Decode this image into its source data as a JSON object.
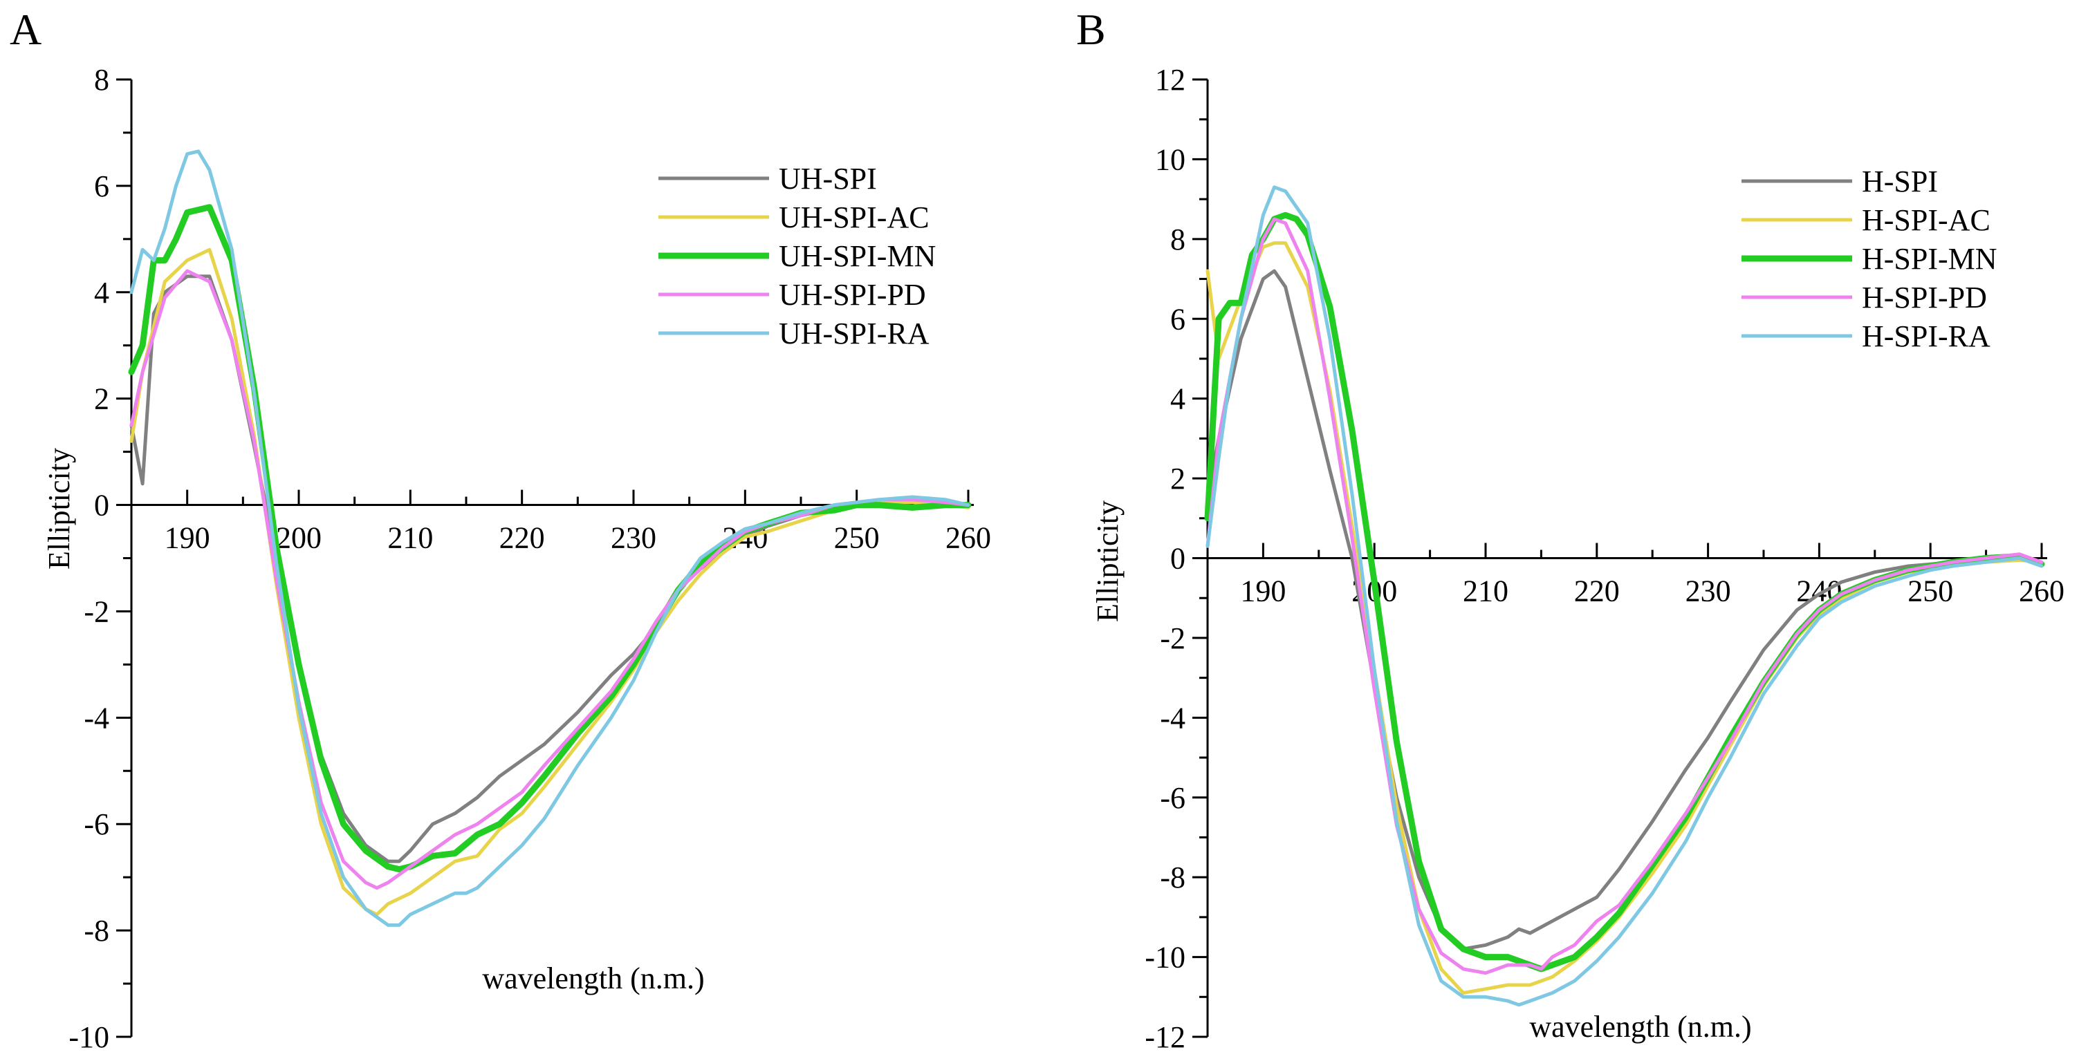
{
  "figure": {
    "panels": [
      "A",
      "B"
    ]
  },
  "chart_data": [
    {
      "panel": "A",
      "type": "line",
      "xlabel": "wavelength (n.m.)",
      "ylabel": "Ellipticity",
      "xlim": [
        185,
        260
      ],
      "ylim": [
        -10,
        8
      ],
      "xticks": [
        190,
        200,
        210,
        220,
        230,
        240,
        250,
        260
      ],
      "yticks": [
        8,
        6,
        4,
        2,
        0,
        -2,
        -4,
        -6,
        -8,
        -10
      ],
      "legend_position": "top-right",
      "grid": false,
      "series": [
        {
          "name": "UH-SPI",
          "color": "#808080",
          "x": [
            185,
            186,
            187,
            188,
            190,
            192,
            194,
            196,
            198,
            200,
            202,
            204,
            206,
            208,
            209,
            210,
            212,
            214,
            216,
            218,
            220,
            222,
            225,
            228,
            230,
            232,
            234,
            236,
            238,
            240,
            242,
            245,
            248,
            250,
            252,
            255,
            258,
            260
          ],
          "y": [
            1.5,
            0.4,
            3.6,
            4.0,
            4.3,
            4.3,
            3.1,
            1.1,
            -1.0,
            -3.0,
            -4.7,
            -5.8,
            -6.4,
            -6.7,
            -6.7,
            -6.5,
            -6.0,
            -5.8,
            -5.5,
            -5.1,
            -4.8,
            -4.5,
            -3.9,
            -3.2,
            -2.8,
            -2.3,
            -1.6,
            -1.2,
            -0.9,
            -0.6,
            -0.4,
            -0.2,
            -0.05,
            0.0,
            0.05,
            0.1,
            0.05,
            0.0
          ]
        },
        {
          "name": "UH-SPI-AC",
          "color": "#E8D44A",
          "x": [
            185,
            186,
            188,
            190,
            192,
            194,
            196,
            198,
            200,
            202,
            204,
            206,
            207,
            208,
            210,
            212,
            214,
            216,
            218,
            220,
            222,
            225,
            228,
            230,
            232,
            234,
            236,
            238,
            240,
            242,
            245,
            248,
            250,
            252,
            255,
            258,
            260
          ],
          "y": [
            1.2,
            2.5,
            4.2,
            4.6,
            4.8,
            3.5,
            1.3,
            -1.5,
            -4.0,
            -6.0,
            -7.2,
            -7.6,
            -7.7,
            -7.5,
            -7.3,
            -7.0,
            -6.7,
            -6.6,
            -6.1,
            -5.8,
            -5.3,
            -4.5,
            -3.7,
            -3.1,
            -2.4,
            -1.8,
            -1.3,
            -0.9,
            -0.6,
            -0.5,
            -0.3,
            -0.1,
            0.0,
            0.05,
            0.05,
            0.0,
            -0.05
          ]
        },
        {
          "name": "UH-SPI-MN",
          "color": "#22CC22",
          "width": 9,
          "x": [
            185,
            186,
            187,
            188,
            189,
            190,
            192,
            194,
            196,
            198,
            200,
            202,
            204,
            206,
            208,
            209,
            210,
            211,
            212,
            214,
            216,
            218,
            220,
            222,
            225,
            228,
            230,
            232,
            234,
            236,
            238,
            240,
            242,
            245,
            248,
            250,
            252,
            255,
            258,
            260
          ],
          "y": [
            2.5,
            3.0,
            4.6,
            4.6,
            5.0,
            5.5,
            5.6,
            4.6,
            2.2,
            -0.8,
            -3.0,
            -4.8,
            -6.0,
            -6.5,
            -6.8,
            -6.85,
            -6.8,
            -6.7,
            -6.6,
            -6.55,
            -6.2,
            -6.0,
            -5.6,
            -5.1,
            -4.3,
            -3.6,
            -3.0,
            -2.3,
            -1.6,
            -1.1,
            -0.8,
            -0.5,
            -0.35,
            -0.15,
            -0.1,
            0.0,
            0.0,
            -0.05,
            0.0,
            0.0
          ]
        },
        {
          "name": "UH-SPI-PD",
          "color": "#EE82EE",
          "x": [
            185,
            186,
            188,
            190,
            192,
            194,
            196,
            198,
            200,
            202,
            204,
            206,
            207,
            208,
            210,
            212,
            214,
            216,
            218,
            220,
            222,
            225,
            228,
            230,
            232,
            234,
            236,
            238,
            240,
            242,
            245,
            248,
            250,
            252,
            255,
            258,
            260
          ],
          "y": [
            1.5,
            2.5,
            3.9,
            4.4,
            4.2,
            3.1,
            1.2,
            -1.4,
            -3.7,
            -5.6,
            -6.7,
            -7.1,
            -7.2,
            -7.1,
            -6.8,
            -6.5,
            -6.2,
            -6.0,
            -5.7,
            -5.4,
            -4.9,
            -4.2,
            -3.5,
            -2.9,
            -2.2,
            -1.6,
            -1.2,
            -0.8,
            -0.5,
            -0.35,
            -0.2,
            0.0,
            0.05,
            0.1,
            0.1,
            0.05,
            0.0
          ]
        },
        {
          "name": "UH-SPI-RA",
          "color": "#7EC8E3",
          "x": [
            185,
            186,
            187,
            188,
            189,
            190,
            191,
            192,
            194,
            196,
            198,
            200,
            202,
            204,
            206,
            208,
            209,
            210,
            212,
            214,
            215,
            216,
            218,
            220,
            222,
            225,
            228,
            230,
            232,
            234,
            236,
            238,
            240,
            242,
            245,
            248,
            250,
            252,
            255,
            258,
            260
          ],
          "y": [
            4.0,
            4.8,
            4.6,
            5.2,
            6.0,
            6.6,
            6.65,
            6.3,
            4.8,
            2.1,
            -1.1,
            -3.8,
            -5.8,
            -7.0,
            -7.6,
            -7.9,
            -7.9,
            -7.7,
            -7.5,
            -7.3,
            -7.3,
            -7.2,
            -6.8,
            -6.4,
            -5.9,
            -4.9,
            -4.0,
            -3.3,
            -2.4,
            -1.6,
            -1.0,
            -0.7,
            -0.45,
            -0.35,
            -0.15,
            0.0,
            0.05,
            0.1,
            0.15,
            0.1,
            0.0
          ]
        }
      ]
    },
    {
      "panel": "B",
      "type": "line",
      "xlabel": "wavelength (n.m.)",
      "ylabel": "Ellipticity",
      "xlim": [
        185,
        260
      ],
      "ylim": [
        -12,
        12
      ],
      "xticks": [
        190,
        200,
        210,
        220,
        230,
        240,
        250,
        260
      ],
      "yticks": [
        12,
        10,
        8,
        6,
        4,
        2,
        0,
        -2,
        -4,
        -6,
        -8,
        -10,
        -12
      ],
      "legend_position": "top-right",
      "grid": false,
      "series": [
        {
          "name": "H-SPI",
          "color": "#808080",
          "x": [
            185,
            186,
            188,
            190,
            191,
            192,
            194,
            196,
            198,
            200,
            202,
            204,
            206,
            208,
            210,
            212,
            213,
            214,
            216,
            218,
            220,
            222,
            225,
            228,
            230,
            232,
            235,
            238,
            240,
            242,
            245,
            248,
            250,
            252,
            255,
            258,
            260
          ],
          "y": [
            1.5,
            3.0,
            5.5,
            7.0,
            7.2,
            6.8,
            4.5,
            2.2,
            0.0,
            -3.2,
            -6.0,
            -8.0,
            -9.3,
            -9.8,
            -9.7,
            -9.5,
            -9.3,
            -9.4,
            -9.1,
            -8.8,
            -8.5,
            -7.8,
            -6.6,
            -5.3,
            -4.5,
            -3.6,
            -2.3,
            -1.3,
            -0.9,
            -0.6,
            -0.35,
            -0.2,
            -0.15,
            -0.1,
            0.0,
            0.05,
            -0.1
          ]
        },
        {
          "name": "H-SPI-AC",
          "color": "#E8D44A",
          "x": [
            185,
            186,
            188,
            190,
            191,
            192,
            194,
            196,
            198,
            200,
            202,
            204,
            206,
            208,
            210,
            212,
            214,
            216,
            218,
            220,
            222,
            225,
            228,
            230,
            232,
            235,
            238,
            240,
            242,
            245,
            248,
            250,
            252,
            255,
            258,
            260
          ],
          "y": [
            7.2,
            5.0,
            6.5,
            7.8,
            7.9,
            7.9,
            6.8,
            4.2,
            0.8,
            -2.8,
            -6.2,
            -8.8,
            -10.3,
            -10.9,
            -10.8,
            -10.7,
            -10.7,
            -10.5,
            -10.1,
            -9.6,
            -9.0,
            -7.9,
            -6.7,
            -5.7,
            -4.7,
            -3.2,
            -2.0,
            -1.4,
            -1.0,
            -0.6,
            -0.35,
            -0.25,
            -0.15,
            -0.1,
            -0.05,
            -0.1
          ]
        },
        {
          "name": "H-SPI-MN",
          "color": "#22CC22",
          "width": 9,
          "x": [
            185,
            186,
            187,
            188,
            189,
            190,
            191,
            192,
            193,
            194,
            196,
            198,
            200,
            202,
            204,
            206,
            208,
            210,
            212,
            214,
            215,
            216,
            218,
            220,
            222,
            225,
            228,
            230,
            232,
            235,
            238,
            240,
            242,
            245,
            248,
            250,
            252,
            255,
            258,
            260
          ],
          "y": [
            1.0,
            6.0,
            6.4,
            6.4,
            7.6,
            8.0,
            8.5,
            8.6,
            8.5,
            8.1,
            6.3,
            3.2,
            -0.6,
            -4.6,
            -7.6,
            -9.3,
            -9.8,
            -10.0,
            -10.0,
            -10.2,
            -10.3,
            -10.2,
            -10.0,
            -9.5,
            -8.9,
            -7.7,
            -6.5,
            -5.5,
            -4.5,
            -3.1,
            -1.9,
            -1.3,
            -0.9,
            -0.55,
            -0.3,
            -0.2,
            -0.1,
            0.0,
            0.05,
            -0.15
          ]
        },
        {
          "name": "H-SPI-PD",
          "color": "#EE82EE",
          "x": [
            185,
            186,
            188,
            190,
            191,
            192,
            194,
            196,
            198,
            200,
            202,
            204,
            206,
            208,
            210,
            212,
            214,
            215,
            216,
            218,
            220,
            222,
            225,
            228,
            230,
            232,
            235,
            238,
            240,
            242,
            245,
            248,
            250,
            252,
            255,
            258,
            260
          ],
          "y": [
            0.3,
            3.0,
            6.0,
            8.0,
            8.5,
            8.4,
            7.2,
            4.0,
            0.5,
            -3.3,
            -6.7,
            -8.8,
            -9.9,
            -10.3,
            -10.4,
            -10.2,
            -10.2,
            -10.3,
            -10.0,
            -9.7,
            -9.1,
            -8.7,
            -7.6,
            -6.4,
            -5.5,
            -4.6,
            -3.1,
            -1.9,
            -1.3,
            -0.9,
            -0.55,
            -0.3,
            -0.2,
            -0.1,
            0.0,
            0.1,
            -0.1
          ]
        },
        {
          "name": "H-SPI-RA",
          "color": "#7EC8E3",
          "x": [
            185,
            186,
            187,
            188,
            190,
            191,
            192,
            194,
            196,
            198,
            200,
            202,
            204,
            206,
            208,
            210,
            212,
            213,
            214,
            216,
            218,
            220,
            222,
            225,
            228,
            230,
            232,
            235,
            238,
            240,
            242,
            245,
            248,
            250,
            252,
            255,
            258,
            260
          ],
          "y": [
            0.3,
            2.5,
            4.5,
            6.0,
            8.6,
            9.3,
            9.2,
            8.4,
            5.5,
            1.6,
            -2.8,
            -6.6,
            -9.2,
            -10.6,
            -11.0,
            -11.0,
            -11.1,
            -11.2,
            -11.1,
            -10.9,
            -10.6,
            -10.1,
            -9.5,
            -8.4,
            -7.1,
            -6.0,
            -5.0,
            -3.4,
            -2.2,
            -1.5,
            -1.1,
            -0.7,
            -0.45,
            -0.3,
            -0.2,
            -0.1,
            0.0,
            -0.2
          ]
        }
      ]
    }
  ]
}
